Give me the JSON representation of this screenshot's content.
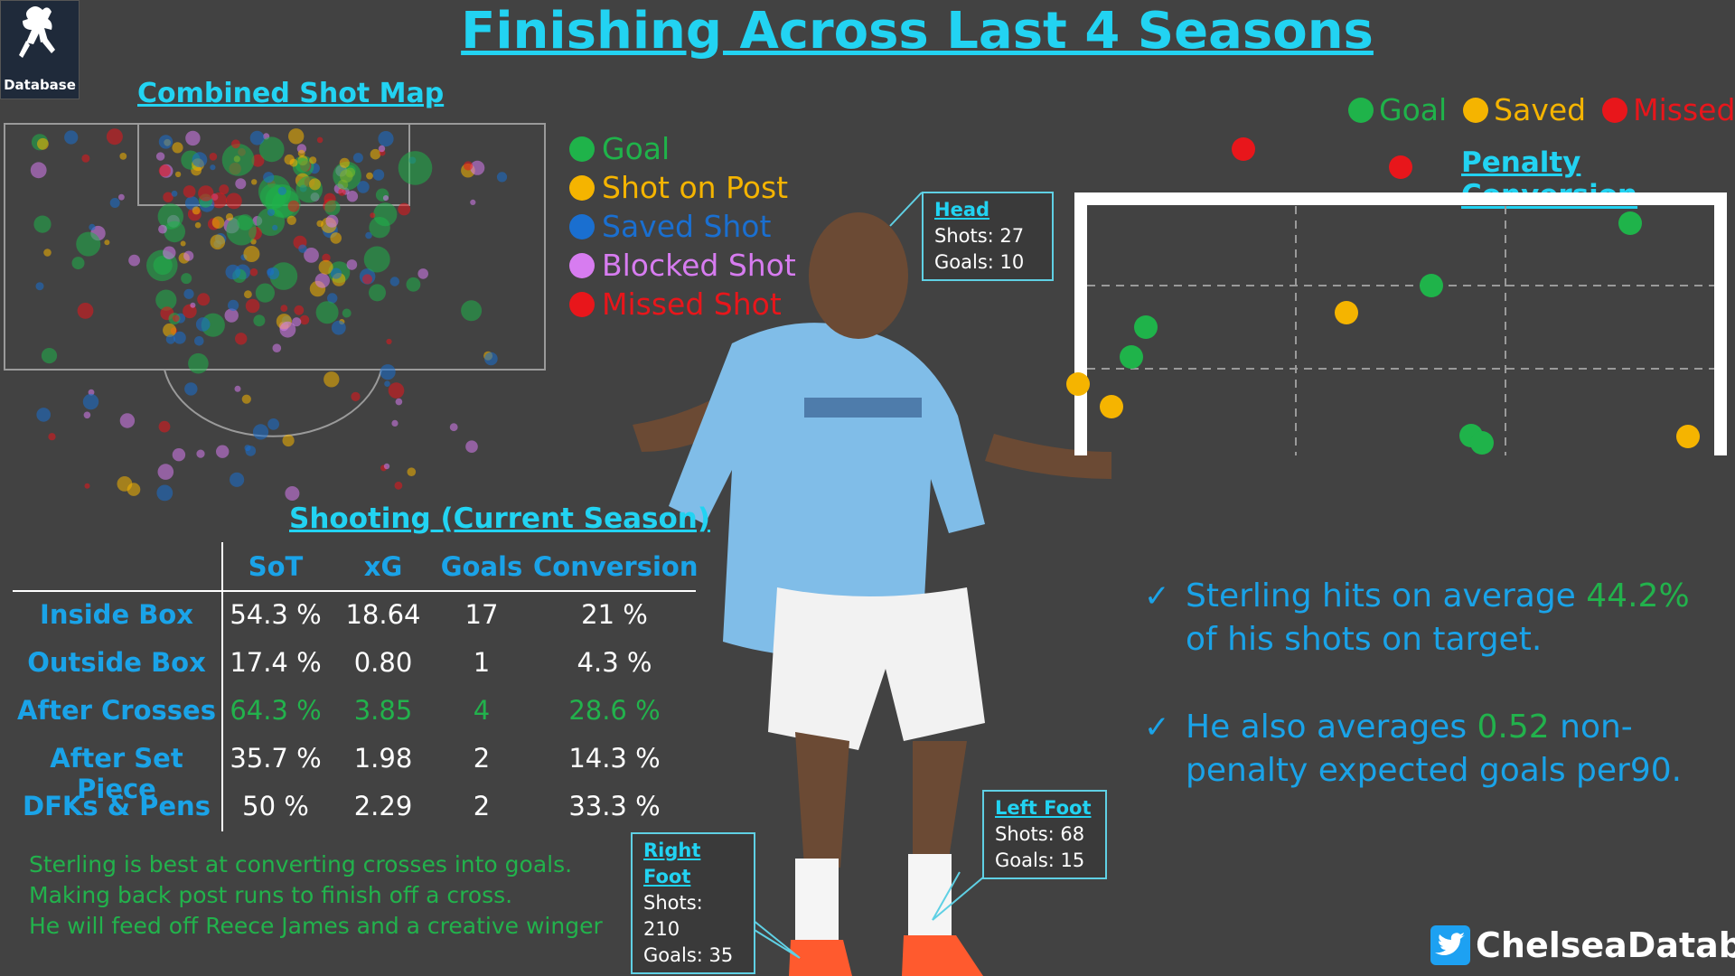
{
  "title": "Finishing Across Last 4 Seasons",
  "logo": {
    "text": "Database"
  },
  "shot_map": {
    "title": "Combined Shot Map",
    "legend": [
      {
        "label": "Goal",
        "color": "#1fb34a"
      },
      {
        "label": "Shot on Post",
        "color": "#f5b400"
      },
      {
        "label": "Saved Shot",
        "color": "#1a6fd0"
      },
      {
        "label": "Blocked Shot",
        "color": "#d77cf0"
      },
      {
        "label": "Missed Shot",
        "color": "#e8161b"
      }
    ]
  },
  "shooting": {
    "title": "Shooting (Current Season)",
    "columns": [
      "SoT",
      "xG",
      "Goals",
      "Conversion"
    ],
    "rows": [
      {
        "label": "Inside Box",
        "values": [
          "54.3 %",
          "18.64",
          "17",
          "21 %"
        ],
        "highlight": false
      },
      {
        "label": "Outside Box",
        "values": [
          "17.4 %",
          "0.80",
          "1",
          "4.3 %"
        ],
        "highlight": false
      },
      {
        "label": "After Crosses",
        "values": [
          "64.3 %",
          "3.85",
          "4",
          "28.6 %"
        ],
        "highlight": true
      },
      {
        "label": "After Set Piece",
        "values": [
          "35.7 %",
          "1.98",
          "2",
          "14.3 %"
        ],
        "highlight": false
      },
      {
        "label": "DFKs & Pens",
        "values": [
          "50 %",
          "2.29",
          "2",
          "33.3 %"
        ],
        "highlight": false
      }
    ],
    "notes": [
      "Sterling is best at converting crosses into goals.",
      "Making back post runs to finish off a cross.",
      "He will feed off Reece James and a creative winger"
    ]
  },
  "body_parts": {
    "head": {
      "title": "Head",
      "shots": "Shots: 27",
      "goals": "Goals: 10"
    },
    "left_foot": {
      "title": "Left Foot",
      "shots": "Shots: 68",
      "goals": "Goals: 15"
    },
    "right_foot": {
      "title": "Right Foot",
      "shots": "Shots: 210",
      "goals": "Goals: 35"
    }
  },
  "penalty": {
    "title": "Penalty Conversion",
    "legend": [
      {
        "label": "Goal",
        "color": "#1fb34a"
      },
      {
        "label": "Saved",
        "color": "#f5b400"
      },
      {
        "label": "Missed",
        "color": "#e8161b"
      }
    ]
  },
  "insights": [
    {
      "pre": "Sterling hits on average ",
      "hl": "44.2%",
      "post": " of his shots on target."
    },
    {
      "pre": "He also averages ",
      "hl": "0.52",
      "post": " non-penalty expected goals per90."
    }
  ],
  "twitter": {
    "handle": "ChelseaDatabase"
  },
  "colors": {
    "accent": "#22d3f2",
    "label_blue": "#1aa3e8",
    "green": "#22b24c",
    "background": "#424242"
  }
}
